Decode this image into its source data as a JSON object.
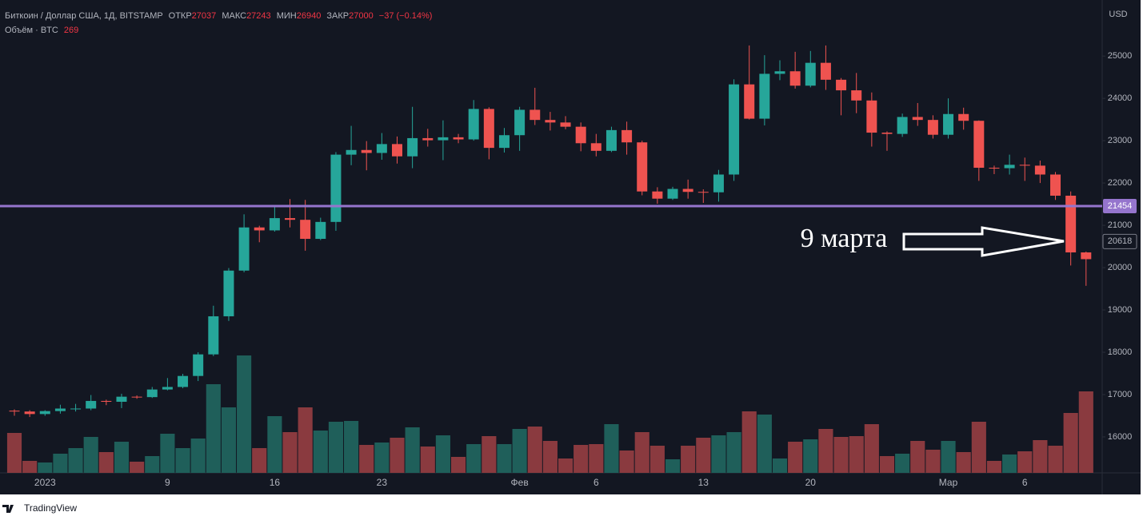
{
  "chart_data": {
    "type": "candlestick",
    "header": {
      "symbol": "Биткоин / Доллар США, 1Д, BITSTAMP",
      "open_label": "ОТКР",
      "open": 27037,
      "high_label": "МАКС",
      "high": 27243,
      "low_label": "МИН",
      "low": 26940,
      "close_label": "ЗАКР",
      "close": 27000,
      "change": "−37 (−0.14%)",
      "volume_label": "Объём · BTC",
      "volume": 269
    },
    "currency": "USD",
    "annotation": "9 марта",
    "hline": {
      "value": 21454,
      "color": "#9575cd"
    },
    "price_label": 20618,
    "ylim": [
      15150,
      26230
    ],
    "yticks": [
      16000,
      17000,
      18000,
      19000,
      20000,
      21000,
      22000,
      23000,
      24000,
      25000
    ],
    "up_color": "#26a69a",
    "down_color": "#ef5350",
    "up_volume_color": "#1f5f5a",
    "down_volume_color": "#8a3a3f",
    "categories": [
      null,
      null,
      "2023",
      null,
      null,
      null,
      null,
      null,
      null,
      null,
      "9",
      null,
      null,
      null,
      null,
      null,
      null,
      "16",
      null,
      null,
      null,
      null,
      null,
      null,
      "23",
      null,
      null,
      null,
      null,
      null,
      null,
      null,
      null,
      "Фев",
      null,
      null,
      null,
      null,
      "6",
      null,
      null,
      null,
      null,
      null,
      null,
      "13",
      null,
      null,
      null,
      null,
      null,
      null,
      "20",
      null,
      null,
      null,
      null,
      null,
      null,
      null,
      null,
      "Мар",
      null,
      null,
      null,
      null,
      "6",
      null,
      null,
      null,
      null
    ],
    "open": [
      16620,
      16600,
      16540,
      16610,
      16670,
      16670,
      16850,
      16830,
      16950,
      16940,
      17120,
      17180,
      17440,
      17950,
      18850,
      19930,
      20950,
      20880,
      21170,
      21130,
      20680,
      21080,
      22670,
      22780,
      22710,
      22920,
      22630,
      23060,
      23010,
      23080,
      23030,
      23750,
      22830,
      23130,
      23730,
      23490,
      23430,
      23330,
      22940,
      22760,
      23250,
      22960,
      21800,
      21630,
      21860,
      21790,
      21780,
      22200,
      24330,
      23520,
      24580,
      24640,
      24300,
      24840,
      24440,
      24190,
      23950,
      23190,
      23160,
      23560,
      23490,
      23140,
      23630,
      23470,
      22360,
      22350,
      22430,
      22410,
      22200,
      21700,
      20360
    ],
    "high": [
      16650,
      16630,
      16630,
      16760,
      16780,
      16990,
      16880,
      17020,
      16980,
      17180,
      17390,
      17490,
      18000,
      19100,
      19990,
      21260,
      20990,
      21450,
      21620,
      21600,
      21180,
      22730,
      23350,
      22990,
      23180,
      23100,
      23800,
      23280,
      23480,
      23160,
      23960,
      23790,
      23300,
      23800,
      24250,
      23680,
      23580,
      23430,
      23160,
      23330,
      23450,
      23000,
      21900,
      21910,
      22080,
      21850,
      22310,
      24450,
      25250,
      25020,
      24900,
      25100,
      25120,
      25250,
      24480,
      24600,
      24140,
      23220,
      23640,
      23890,
      23600,
      24000,
      23780,
      23480,
      22410,
      22670,
      22600,
      22530,
      22260,
      21800,
      20380
    ],
    "low": [
      16500,
      16470,
      16500,
      16550,
      16600,
      16630,
      16750,
      16680,
      16900,
      16920,
      17100,
      17150,
      17320,
      17910,
      18740,
      19890,
      20600,
      20850,
      20950,
      20400,
      20650,
      20870,
      22420,
      22300,
      22550,
      22460,
      22350,
      22860,
      22540,
      22940,
      23000,
      22560,
      22720,
      22760,
      23370,
      23240,
      23270,
      22750,
      22630,
      22730,
      22670,
      21710,
      21510,
      21600,
      21630,
      21530,
      21560,
      22050,
      23500,
      23360,
      24430,
      24230,
      24260,
      24200,
      23600,
      23650,
      22860,
      22760,
      23090,
      23350,
      23050,
      23050,
      23260,
      22050,
      22210,
      22200,
      22050,
      22000,
      21600,
      20050,
      19570
    ],
    "close": [
      16600,
      16540,
      16610,
      16670,
      16670,
      16850,
      16830,
      16950,
      16940,
      17120,
      17180,
      17440,
      17950,
      18850,
      19930,
      20950,
      20880,
      21170,
      21130,
      20680,
      21080,
      22670,
      22780,
      22710,
      22920,
      22630,
      23060,
      23010,
      23080,
      23030,
      23750,
      22830,
      23130,
      23730,
      23490,
      23430,
      23330,
      22940,
      22760,
      23250,
      22960,
      21800,
      21630,
      21860,
      21790,
      21780,
      22200,
      24330,
      23520,
      24580,
      24640,
      24300,
      24840,
      24440,
      24190,
      23950,
      23190,
      23160,
      23560,
      23490,
      23140,
      23630,
      23470,
      22360,
      22350,
      22430,
      22410,
      22200,
      21700,
      20360,
      20200
    ],
    "volume": [
      50,
      15,
      13,
      24,
      31,
      45,
      26,
      39,
      14,
      21,
      49,
      31,
      43,
      111,
      82,
      147,
      31,
      71,
      51,
      82,
      53,
      64,
      65,
      35,
      38,
      44,
      57,
      33,
      47,
      20,
      36,
      46,
      36,
      55,
      58,
      40,
      18,
      35,
      36,
      61,
      28,
      51,
      34,
      17,
      34,
      44,
      47,
      51,
      77,
      73,
      18,
      39,
      42,
      55,
      45,
      46,
      61,
      21,
      24,
      40,
      29,
      40,
      26,
      64,
      15,
      23,
      27,
      41,
      34,
      75,
      102
    ],
    "brand": "TradingView"
  }
}
